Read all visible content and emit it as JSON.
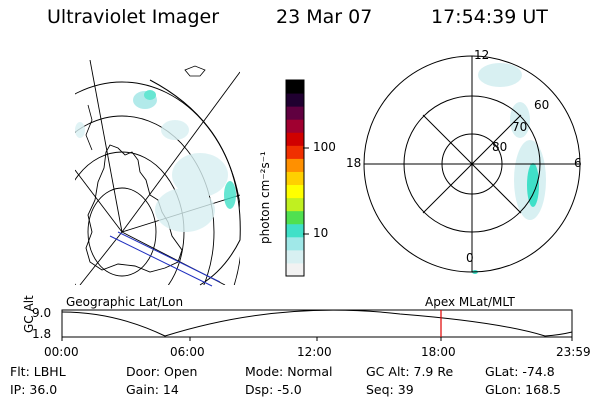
{
  "header": {
    "instrument": "Ultraviolet Imager",
    "date": "23 Mar 07",
    "time": "17:54:39 UT"
  },
  "colorbar": {
    "unit_label": "photon cm⁻²s⁻¹",
    "ticks": [
      "100",
      "10"
    ],
    "colors": [
      "#f2f2f2",
      "#d8f0f2",
      "#a0e8e8",
      "#40e0c8",
      "#50e050",
      "#c0f020",
      "#ffff00",
      "#ffd000",
      "#ff9000",
      "#f03000",
      "#d00000",
      "#a00030",
      "#600040",
      "#200030",
      "#000000"
    ]
  },
  "polar_plot": {
    "mlt_labels": [
      "12",
      "18",
      "6",
      "0"
    ],
    "lat_labels": [
      "60",
      "70",
      "80"
    ]
  },
  "timeline": {
    "left_title": "Geographic Lat/Lon",
    "right_title": "Apex MLat/MLT",
    "axis_label": "GC Alt",
    "y_max": "9.0",
    "y_min": "1.8",
    "time_ticks": [
      "00:00",
      "06:00",
      "12:00",
      "18:00",
      "23:59"
    ],
    "marker_color": "#e00000"
  },
  "status": {
    "row1": {
      "filter": "Flt: LBHL",
      "door": "Door: Open",
      "mode": "Mode: Normal",
      "gc_alt": "GC Alt: 7.9 Re",
      "glat": "GLat: -74.8"
    },
    "row2": {
      "ip": "IP: 36.0",
      "gain": "Gain: 14",
      "dsp": "Dsp:   -5.0",
      "seq": "Seq: 39",
      "glon": "GLon: 168.5"
    }
  }
}
